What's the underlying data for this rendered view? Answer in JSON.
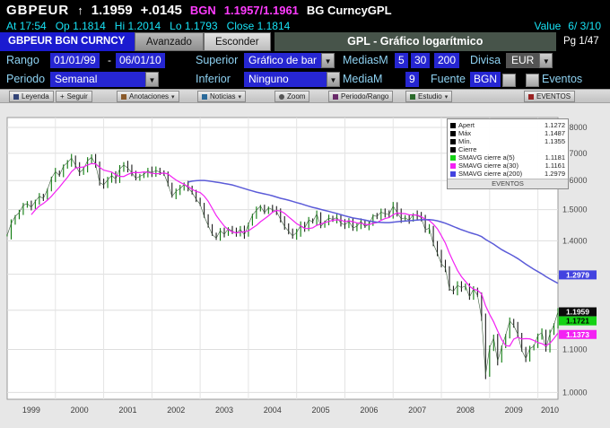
{
  "titlebar": {
    "ticker": "GBPEUR",
    "arrow": "↑",
    "price": "1.1959",
    "change": "+.0145",
    "source": "BGN",
    "bid_ask": "1.1957/1.1961",
    "suffix": "BG CurncyGPL"
  },
  "quote": {
    "at_label": "At",
    "time": "17:54",
    "op_label": "Op",
    "open": "1.1814",
    "hi_label": "Hi",
    "high": "1.2014",
    "lo_label": "Lo",
    "low": "1.1793",
    "close_label": "Close",
    "close": "1.1814",
    "value_label": "Value",
    "value_date": "6/ 3/10"
  },
  "tabrow": {
    "security": "GBPEUR BGN CURNCY",
    "tab_avanzado": "Avanzado",
    "tab_esconder": "Esconder",
    "screen_title": "GPL - Gráfico logarítmico",
    "page": "Pg 1/47"
  },
  "controls": {
    "rango_label": "Rango",
    "rango_from": "01/01/99",
    "rango_dash": "-",
    "rango_to": "06/01/10",
    "superior_label": "Superior",
    "superior_value": "Gráfico de bar",
    "mediasm_label": "MediasM",
    "ma1": "5",
    "ma2": "30",
    "ma3": "200",
    "divisa_label": "Divisa",
    "divisa_value": "EUR",
    "periodo_label": "Periodo",
    "periodo_value": "Semanal",
    "inferior_label": "Inferior",
    "inferior_value": "Ninguno",
    "mediam_label": "MediaM",
    "mediam_value": "9",
    "fuente_label": "Fuente",
    "fuente_value": "BGN",
    "eventos_label": "Eventos",
    "dropdown_arrow": "▼"
  },
  "chart_toolbar": {
    "buttons": [
      "Leyenda",
      "Seguir",
      "Anotaciones",
      "Noticias",
      "Zoom",
      "Periodo/Rango",
      "Estudio",
      "EVENTOS"
    ],
    "seguir_prefix": "+",
    "dropdown_arrow": "▾"
  },
  "legend": {
    "rows": [
      {
        "swatch": "#000000",
        "label": "Apert",
        "value": "1.1272"
      },
      {
        "swatch": "#000000",
        "label": "Máx",
        "value": "1.1487"
      },
      {
        "swatch": "#000000",
        "label": "Mín.",
        "value": "1.1355"
      },
      {
        "swatch": "#000000",
        "label": "Cierre",
        "value": ""
      },
      {
        "swatch": "#15d215",
        "label": "SMAVG cierre a(5)",
        "value": "1.1181"
      },
      {
        "swatch": "#f321f3",
        "label": "SMAVG cierre a(30)",
        "value": "1.1161"
      },
      {
        "swatch": "#4343e0",
        "label": "SMAVG cierre a(200)",
        "value": "1.2979"
      }
    ],
    "footer": "EVENTOS"
  },
  "axis": {
    "badges": [
      {
        "v": 1.2979,
        "text": "1.2979",
        "bg": "#4343e0",
        "fg": "#ffffff"
      },
      {
        "v": 1.1959,
        "text": "1.1959",
        "bg": "#0a0a0a",
        "fg": "#ffffff"
      },
      {
        "v": 1.1721,
        "text": "1.1721",
        "bg": "#15d215",
        "fg": "#000000"
      },
      {
        "v": 1.1373,
        "text": "1.1373",
        "bg": "#f321f3",
        "fg": "#ffffff"
      }
    ]
  },
  "chart_data": {
    "type": "bar",
    "title": "GPL - Gráfico logarítmico",
    "x_years": [
      1999,
      2000,
      2001,
      2002,
      2003,
      2004,
      2005,
      2006,
      2007,
      2008,
      2009,
      2010
    ],
    "points_per_year": 12,
    "log_scale": true,
    "ylim": [
      0.985,
      1.84
    ],
    "y_ticks": [
      1.0,
      1.1,
      1.2,
      1.3,
      1.4,
      1.5,
      1.6,
      1.7,
      1.8
    ],
    "ma_windows": {
      "magenta": 7,
      "blue": 46
    },
    "colors": {
      "up": "#0b7a0b",
      "down": "#1c1c1c",
      "close_line": "#3a5a3a",
      "ma30": "#f321f3",
      "ma200": "#5b5bd8"
    },
    "close": [
      1.417,
      1.455,
      1.478,
      1.49,
      1.515,
      1.52,
      1.508,
      1.528,
      1.545,
      1.538,
      1.568,
      1.608,
      1.632,
      1.618,
      1.652,
      1.665,
      1.682,
      1.655,
      1.628,
      1.642,
      1.672,
      1.685,
      1.658,
      1.593,
      1.585,
      1.602,
      1.618,
      1.605,
      1.642,
      1.656,
      1.645,
      1.628,
      1.608,
      1.615,
      1.622,
      1.635,
      1.628,
      1.636,
      1.63,
      1.624,
      1.588,
      1.545,
      1.562,
      1.572,
      1.586,
      1.575,
      1.558,
      1.535,
      1.518,
      1.478,
      1.448,
      1.42,
      1.408,
      1.432,
      1.42,
      1.438,
      1.43,
      1.424,
      1.436,
      1.418,
      1.452,
      1.482,
      1.498,
      1.512,
      1.49,
      1.506,
      1.5,
      1.494,
      1.468,
      1.445,
      1.43,
      1.415,
      1.426,
      1.448,
      1.44,
      1.466,
      1.46,
      1.486,
      1.445,
      1.46,
      1.472,
      1.468,
      1.474,
      1.456,
      1.45,
      1.462,
      1.44,
      1.446,
      1.462,
      1.445,
      1.452,
      1.48,
      1.478,
      1.492,
      1.486,
      1.484,
      1.512,
      1.49,
      1.47,
      1.473,
      1.465,
      1.484,
      1.48,
      1.474,
      1.434,
      1.44,
      1.39,
      1.362,
      1.33,
      1.318,
      1.258,
      1.252,
      1.268,
      1.262,
      1.266,
      1.236,
      1.258,
      1.24,
      1.18,
      1.04,
      1.105,
      1.128,
      1.072,
      1.106,
      1.136,
      1.172,
      1.16,
      1.138,
      1.098,
      1.078,
      1.102,
      1.108,
      1.135,
      1.142,
      1.102,
      1.14,
      1.162,
      1.196
    ]
  }
}
